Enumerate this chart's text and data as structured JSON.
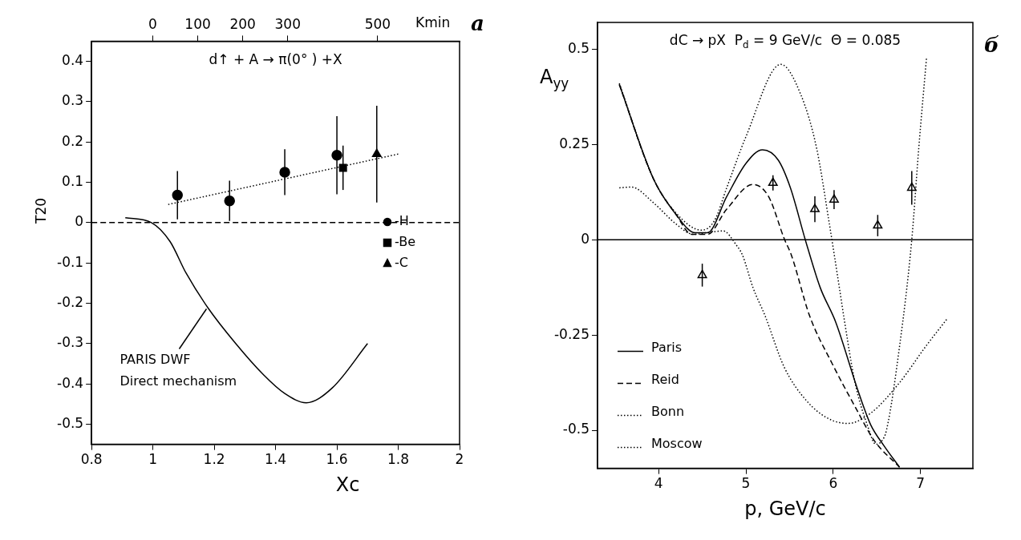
{
  "chart_data": [
    {
      "type": "scatter",
      "title": "d↑ + A → π(0° ) +X",
      "xlabel": "Xc",
      "ylabel": "T20",
      "x2label": "Kmin",
      "xlim": [
        0.8,
        2
      ],
      "xticks": [
        0.8,
        1,
        1.2,
        1.4,
        1.6,
        1.8,
        2
      ],
      "x2lim": [
        -136,
        682
      ],
      "x2ticks": [
        0,
        100,
        200,
        300,
        500
      ],
      "ylim": [
        -0.55,
        0.45
      ],
      "yticks": [
        -0.5,
        -0.4,
        -0.3,
        -0.2,
        -0.1,
        0,
        0.1,
        0.2,
        0.3,
        0.4
      ],
      "legend": "right",
      "ref_lines": [
        {
          "axis": "y",
          "value": 0,
          "line_style": "dashed",
          "color": "#000000"
        }
      ],
      "annotations": [
        "а",
        {
          "text": "PARIS DWF\nDirect mechanism",
          "x": 1.18,
          "y": -0.21
        }
      ],
      "series": [
        {
          "name": "-H",
          "marker": "circle",
          "color": "#000000",
          "x": [
            1.08,
            1.25,
            1.43,
            1.6
          ],
          "values": [
            0.068,
            0.054,
            0.125,
            0.167
          ],
          "errors": [
            0.06,
            0.05,
            0.057,
            0.097
          ]
        },
        {
          "name": "-Be",
          "marker": "square",
          "color": "#000000",
          "x": [
            1.62
          ],
          "values": [
            0.136
          ],
          "errors": [
            0.055
          ]
        },
        {
          "name": "-C",
          "marker": "triangle",
          "color": "#000000",
          "x": [
            1.73
          ],
          "values": [
            0.17
          ],
          "errors": [
            0.12
          ]
        },
        {
          "type": "line",
          "line_style": "dotted",
          "color": "#000000",
          "x": [
            1.05,
            1.8
          ],
          "values": [
            0.045,
            0.17
          ]
        },
        {
          "type": "line",
          "line_style": "solid",
          "color": "#000000",
          "x": [
            0.91,
            0.995,
            1.056,
            1.108,
            1.18,
            1.27,
            1.36,
            1.43,
            1.5,
            1.585,
            1.7
          ],
          "values": [
            0.012,
            0,
            -0.047,
            -0.125,
            -0.212,
            -0.3,
            -0.377,
            -0.424,
            -0.447,
            -0.41,
            -0.3
          ]
        }
      ]
    },
    {
      "type": "line",
      "title": "dC → pX  P$_{d}$ = 9 GeV/c  Θ = 0.085",
      "xlabel": "p, GeV/c",
      "ylabel": "A$_{yy}$",
      "xlim": [
        3.3,
        7.6
      ],
      "xticks": [
        4,
        5,
        6,
        7
      ],
      "ylim": [
        -0.6,
        0.57
      ],
      "yticks": [
        -0.5,
        -0.25,
        0,
        0.25,
        0.5
      ],
      "legend": "bottom left",
      "ref_lines": [
        {
          "axis": "y",
          "value": 0,
          "line_style": "solid",
          "color": "#000000"
        }
      ],
      "annotations": [
        "б"
      ],
      "series": [
        {
          "type": "scatter",
          "marker": "triangle",
          "color": "#000000",
          "x": [
            4.5,
            5.31,
            5.79,
            6.01,
            6.51,
            6.9
          ],
          "values": [
            -0.093,
            0.149,
            0.08,
            0.105,
            0.037,
            0.136
          ],
          "errors": [
            0.03,
            0.02,
            0.034,
            0.025,
            0.028,
            0.044
          ]
        },
        {
          "name": "Paris",
          "line_style": "solid",
          "color": "#000000",
          "x": [
            3.55,
            3.94,
            4.2,
            4.42,
            4.56,
            4.78,
            5.0,
            5.19,
            5.37,
            5.51,
            5.68,
            5.85,
            6.03,
            6.29,
            6.43,
            6.58,
            6.76
          ],
          "values": [
            0.407,
            0.16,
            0.066,
            0.018,
            0.018,
            0.113,
            0.2,
            0.236,
            0.209,
            0.136,
            0,
            -0.125,
            -0.217,
            -0.4,
            -0.486,
            -0.54,
            -0.597
          ]
        },
        {
          "name": "Reid",
          "line_style": "dashed",
          "color": "#000000",
          "x": [
            3.55,
            3.94,
            4.2,
            4.38,
            4.56,
            4.78,
            5.08,
            5.26,
            5.44,
            5.52,
            5.73,
            5.99,
            6.25,
            6.47,
            6.76
          ],
          "values": [
            0.407,
            0.16,
            0.066,
            0.014,
            0.014,
            0.08,
            0.145,
            0.113,
            0.002,
            -0.04,
            -0.2,
            -0.326,
            -0.438,
            -0.527,
            -0.597
          ]
        },
        {
          "name": "Bonn",
          "line_style": "dotted",
          "color": "#000000",
          "x": [
            3.55,
            3.94,
            4.2,
            4.49,
            4.64,
            4.78,
            5.0,
            5.4,
            5.63,
            5.81,
            5.95,
            6.07,
            6.12,
            6.25,
            6.39,
            6.49,
            6.56,
            6.61,
            6.76,
            6.9,
            6.98,
            7.07
          ],
          "values": [
            0.41,
            0.16,
            0.07,
            0.025,
            0.05,
            0.136,
            0.27,
            0.46,
            0.38,
            0.24,
            0.05,
            -0.125,
            -0.2,
            -0.375,
            -0.486,
            -0.537,
            -0.527,
            -0.5,
            -0.28,
            0,
            0.24,
            0.48
          ]
        },
        {
          "name": "Moscow",
          "line_style": "dotted",
          "color": "#000000",
          "x": [
            3.55,
            3.69,
            3.94,
            4.2,
            4.4,
            4.6,
            4.74,
            4.89,
            4.96,
            5.08,
            5.22,
            5.44,
            5.7,
            5.95,
            6.17,
            6.43,
            6.76,
            7.06,
            7.3
          ],
          "values": [
            0.136,
            0.138,
            0.097,
            0.041,
            0.014,
            0.02,
            0.023,
            -0.014,
            -0.04,
            -0.125,
            -0.2,
            -0.335,
            -0.424,
            -0.47,
            -0.482,
            -0.455,
            -0.375,
            -0.28,
            -0.209
          ]
        }
      ]
    }
  ]
}
